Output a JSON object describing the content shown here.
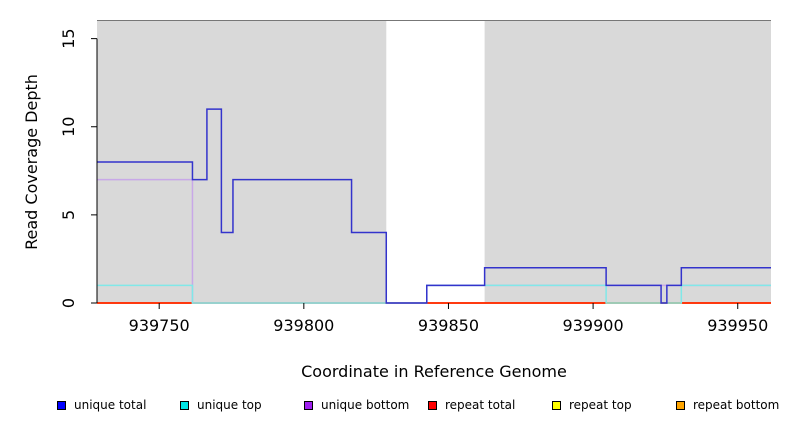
{
  "chart_data": {
    "type": "line",
    "title": "",
    "xlabel": "Coordinate in Reference Genome",
    "ylabel": "Read Coverage Depth",
    "xlim": [
      939728.5,
      939961.5
    ],
    "ylim": [
      0,
      16
    ],
    "x_ticks": [
      939750,
      939800,
      939850,
      939900,
      939950
    ],
    "y_ticks": [
      0,
      5,
      10,
      15
    ],
    "background_color": "#d9d9d9",
    "shaded_regions": [
      [
        939728.5,
        939828.5
      ],
      [
        939862.5,
        939961.5
      ]
    ],
    "series": [
      {
        "name": "unique total",
        "color": "#0000ff",
        "line_color": "#3333cc",
        "steps": [
          [
            939728.5,
            939761.5,
            8
          ],
          [
            939761.5,
            939766.5,
            7
          ],
          [
            939766.5,
            939771.5,
            11
          ],
          [
            939771.5,
            939775.5,
            4
          ],
          [
            939775.5,
            939816.5,
            7
          ],
          [
            939816.5,
            939828.5,
            4
          ],
          [
            939828.5,
            939842.5,
            0
          ],
          [
            939842.5,
            939862.5,
            1
          ],
          [
            939862.5,
            939904.5,
            2
          ],
          [
            939904.5,
            939923.5,
            1
          ],
          [
            939923.5,
            939925.5,
            0
          ],
          [
            939925.5,
            939930.5,
            1
          ],
          [
            939930.5,
            939961.5,
            2
          ]
        ]
      },
      {
        "name": "unique top",
        "color": "#00e5e5",
        "line_color": "#80e8e8",
        "steps": [
          [
            939728.5,
            939761.5,
            1
          ],
          [
            939761.5,
            939842.5,
            0
          ],
          [
            939842.5,
            939904.5,
            1
          ],
          [
            939904.5,
            939930.5,
            0
          ],
          [
            939930.5,
            939961.5,
            1
          ]
        ]
      },
      {
        "name": "unique bottom",
        "color": "#a020f0",
        "line_color": "#c8a8e8",
        "steps": [
          [
            939728.5,
            939761.5,
            7
          ],
          [
            939761.5,
            939842.5,
            0
          ],
          [
            939842.5,
            939961.5,
            1
          ]
        ]
      },
      {
        "name": "repeat total",
        "color": "#ff0000",
        "line_color": "#ff0000",
        "steps": [
          [
            939728.5,
            939961.5,
            0
          ]
        ]
      },
      {
        "name": "repeat top",
        "color": "#ffff00",
        "line_color": "#ffff00",
        "steps": [
          [
            939728.5,
            939961.5,
            0
          ]
        ]
      },
      {
        "name": "repeat bottom",
        "color": "#ffa500",
        "line_color": "#ffa500",
        "steps": [
          [
            939728.5,
            939961.5,
            0
          ]
        ]
      }
    ],
    "legend_position": "bottom"
  }
}
